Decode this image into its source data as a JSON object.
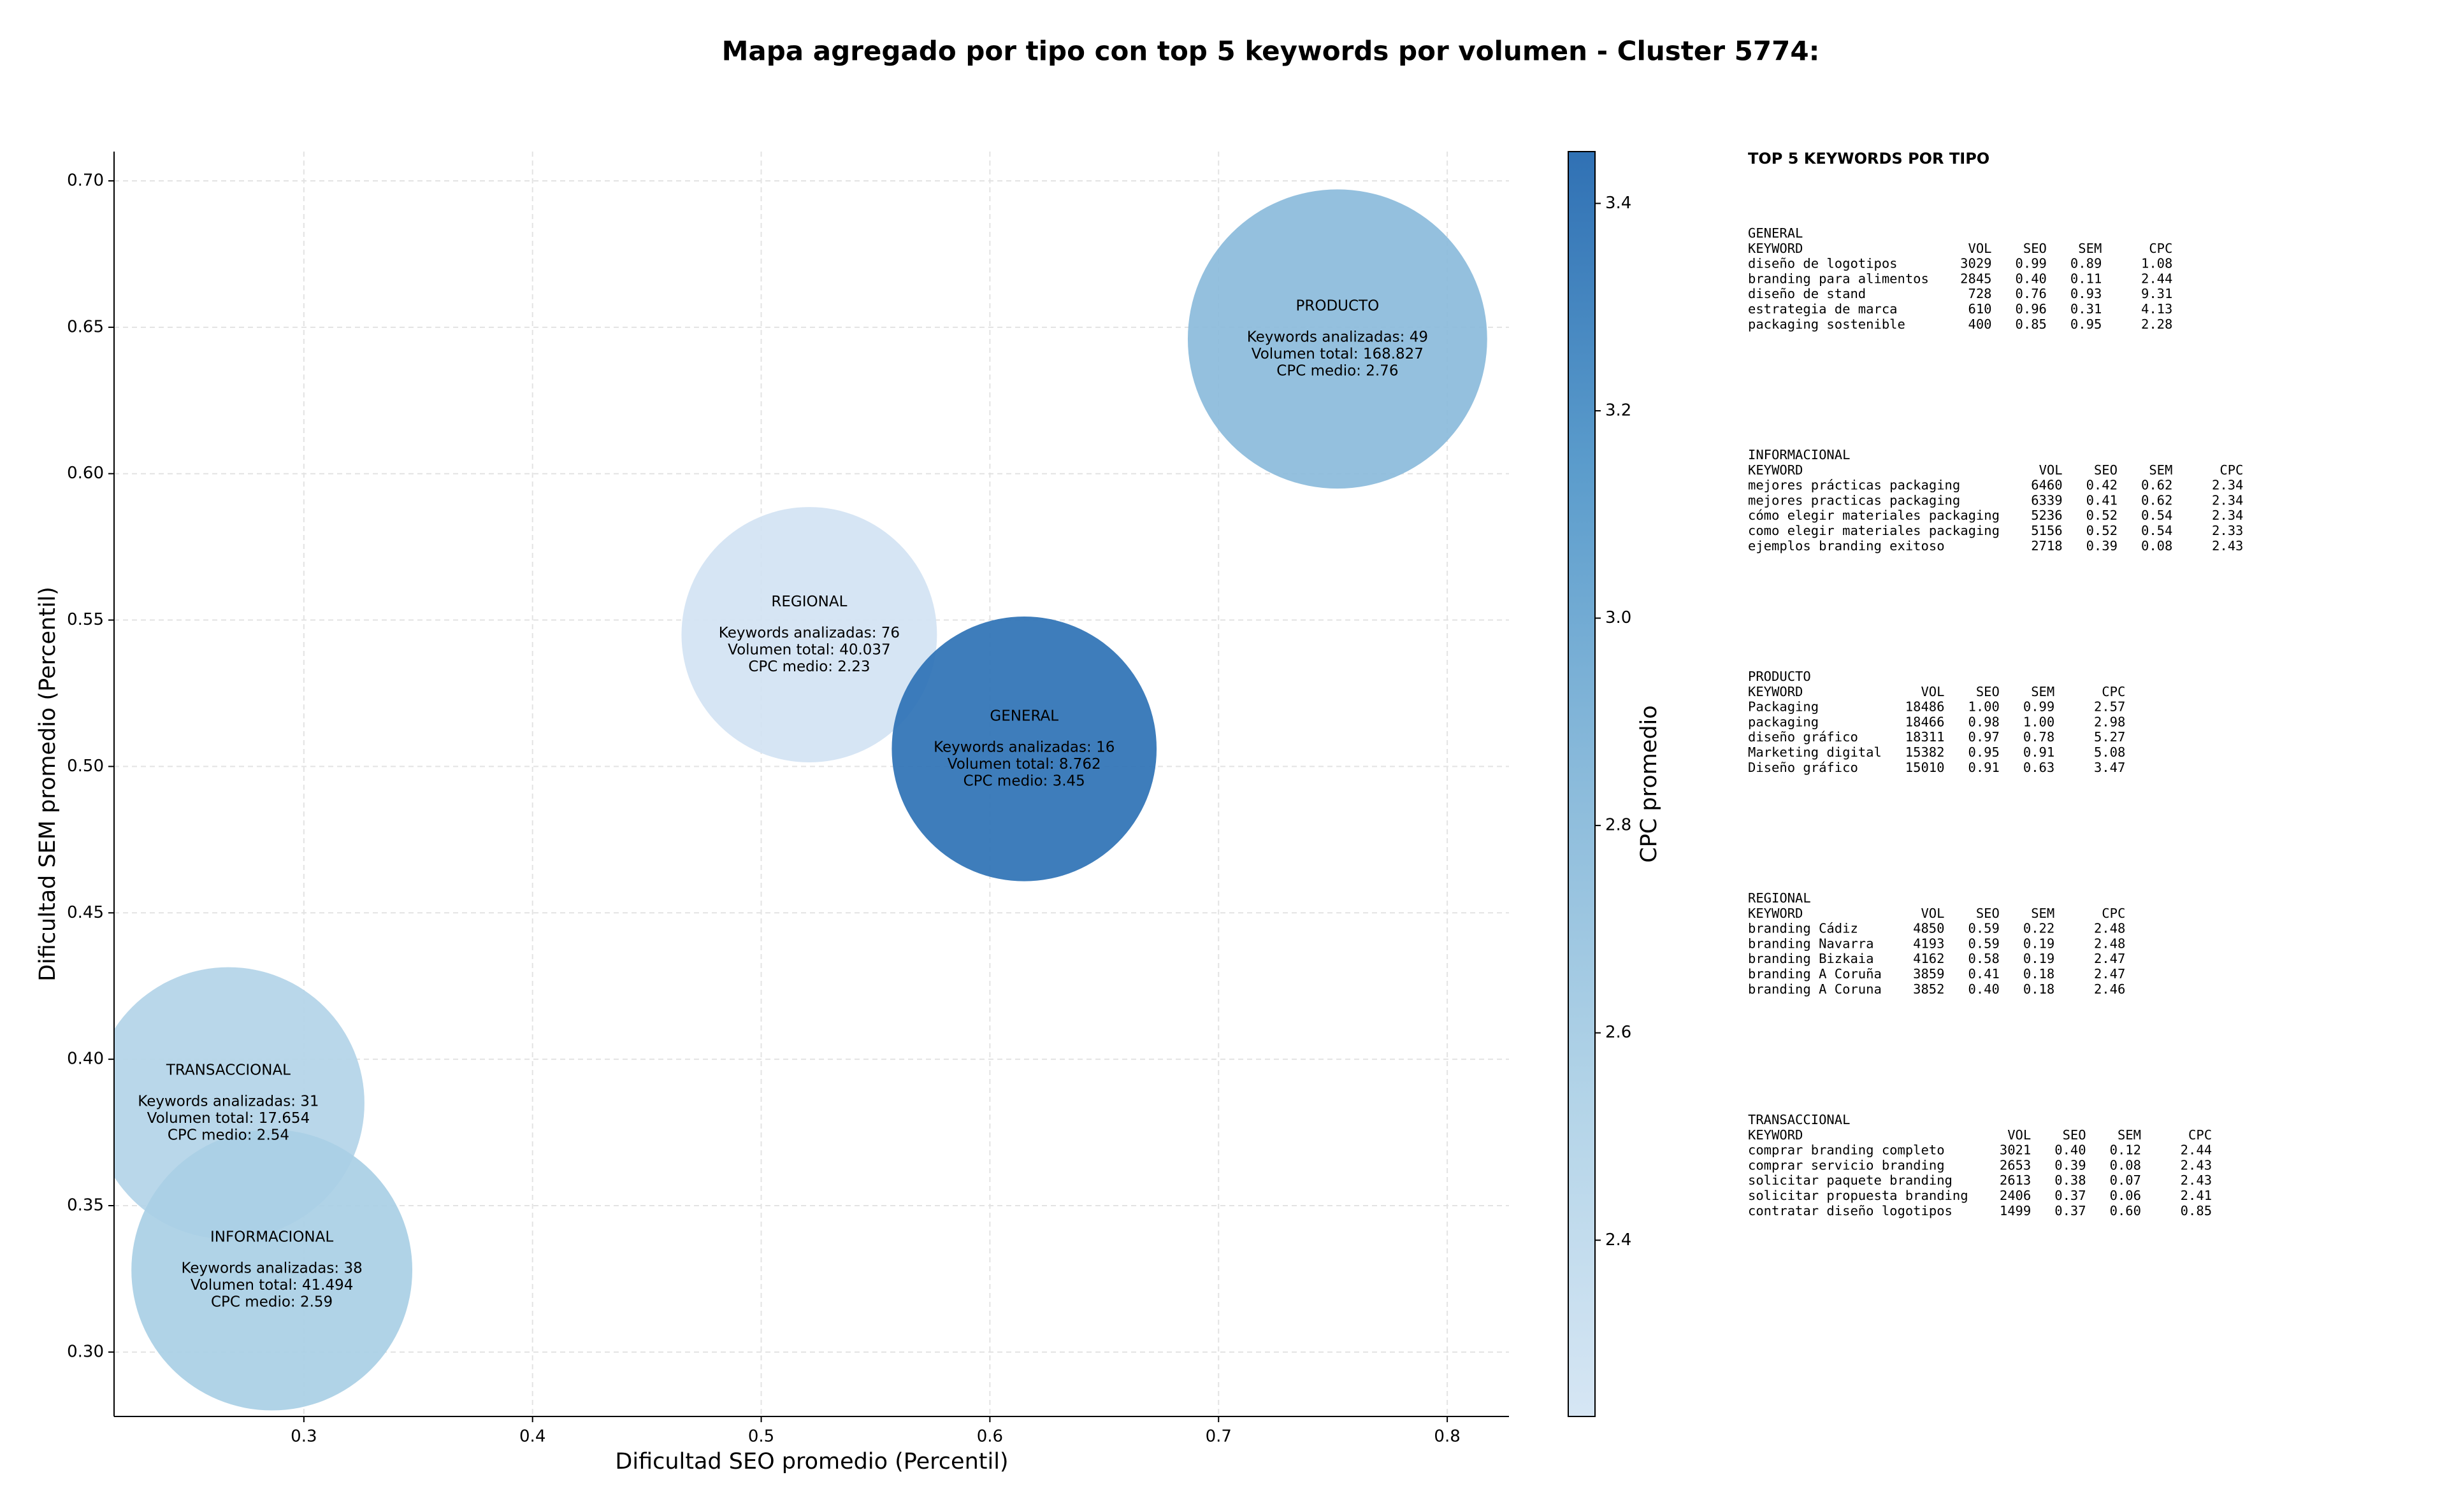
{
  "chart_data": {
    "type": "bubble",
    "title": "Mapa agregado por tipo con top 5 keywords por volumen - Cluster 5774:",
    "xlabel": "Dificultad SEO promedio (Percentil)",
    "ylabel": "Dificultad SEM promedio (Percentil)",
    "names": [
      "PRODUCTO",
      "REGIONAL",
      "GENERAL",
      "TRANSACCIONAL",
      "INFORMACIONAL"
    ],
    "x": [
      0.752,
      0.521,
      0.615,
      0.267,
      0.286
    ],
    "y": [
      0.646,
      0.545,
      0.506,
      0.385,
      0.328
    ],
    "sizes": [
      9200,
      6700,
      7200,
      7600,
      8100
    ],
    "cpc": [
      2.76,
      2.23,
      3.45,
      2.54,
      2.59
    ],
    "colors": [
      "#8bbbdb",
      "#d3e3f3",
      "#2e72b5",
      "#b3d4e8",
      "#a9cfe5"
    ],
    "labels": [
      [
        "Keywords analizadas: 49",
        "Volumen total: 168.827",
        "CPC medio: 2.76"
      ],
      [
        "Keywords analizadas: 76",
        "Volumen total: 40.037",
        "CPC medio: 2.23"
      ],
      [
        "Keywords analizadas: 16",
        "Volumen total: 8.762",
        "CPC medio: 3.45"
      ],
      [
        "Keywords analizadas: 31",
        "Volumen total: 17.654",
        "CPC medio: 2.54"
      ],
      [
        "Keywords analizadas: 38",
        "Volumen total: 41.494",
        "CPC medio: 2.59"
      ]
    ],
    "xlim": [
      0.217,
      0.827
    ],
    "ylim": [
      0.278,
      0.71
    ],
    "xticks": [
      0.3,
      0.4,
      0.5,
      0.6,
      0.7,
      0.8
    ],
    "yticks": [
      {
        "value": 0.3,
        "label": "0.30"
      },
      0.35,
      {
        "value": 0.4,
        "label": "0.40"
      },
      0.45,
      {
        "value": 0.5,
        "label": "0.50"
      },
      0.55,
      {
        "value": 0.6,
        "label": "0.60"
      },
      0.65,
      {
        "value": 0.7,
        "label": "0.70"
      }
    ],
    "grid": true,
    "colorbar": {
      "label": "CPC promedio",
      "lim": [
        2.23,
        3.45
      ],
      "ticks": [
        2.4,
        2.6,
        2.8,
        {
          "value": 3,
          "label": "3.0"
        },
        3.2,
        3.4
      ],
      "colors": [
        "#d6e6f4",
        "#b3d4e8",
        "#8bbbdb",
        "#5b9ccc",
        "#3071b4"
      ]
    }
  },
  "keyword_panel": {
    "title": "TOP 5 KEYWORDS POR TIPO",
    "columns": [
      "KEYWORD",
      "VOL",
      "SEO",
      "SEM",
      "CPC"
    ],
    "sections": [
      {
        "name": "GENERAL",
        "rows": [
          [
            "diseño de logotipos",
            "3029",
            "0.99",
            "0.89",
            "1.08"
          ],
          [
            "branding para alimentos",
            "2845",
            "0.40",
            "0.11",
            "2.44"
          ],
          [
            "diseño de stand",
            "728",
            "0.76",
            "0.93",
            "9.31"
          ],
          [
            "estrategia de marca",
            "610",
            "0.96",
            "0.31",
            "4.13"
          ],
          [
            "packaging sostenible",
            "400",
            "0.85",
            "0.95",
            "2.28"
          ]
        ]
      },
      {
        "name": "INFORMACIONAL",
        "rows": [
          [
            "mejores prácticas packaging",
            "6460",
            "0.42",
            "0.62",
            "2.34"
          ],
          [
            "mejores practicas packaging",
            "6339",
            "0.41",
            "0.62",
            "2.34"
          ],
          [
            "cómo elegir materiales packaging",
            "5236",
            "0.52",
            "0.54",
            "2.34"
          ],
          [
            "como elegir materiales packaging",
            "5156",
            "0.52",
            "0.54",
            "2.33"
          ],
          [
            "ejemplos branding exitoso",
            "2718",
            "0.39",
            "0.08",
            "2.43"
          ]
        ]
      },
      {
        "name": "PRODUCTO",
        "rows": [
          [
            "Packaging",
            "18486",
            "1.00",
            "0.99",
            "2.57"
          ],
          [
            "packaging",
            "18466",
            "0.98",
            "1.00",
            "2.98"
          ],
          [
            "diseño gráfico",
            "18311",
            "0.97",
            "0.78",
            "5.27"
          ],
          [
            "Marketing digital",
            "15382",
            "0.95",
            "0.91",
            "5.08"
          ],
          [
            "Diseño gráfico",
            "15010",
            "0.91",
            "0.63",
            "3.47"
          ]
        ]
      },
      {
        "name": "REGIONAL",
        "rows": [
          [
            "branding Cádiz",
            "4850",
            "0.59",
            "0.22",
            "2.48"
          ],
          [
            "branding Navarra",
            "4193",
            "0.59",
            "0.19",
            "2.48"
          ],
          [
            "branding Bizkaia",
            "4162",
            "0.58",
            "0.19",
            "2.47"
          ],
          [
            "branding A Coruña",
            "3859",
            "0.41",
            "0.18",
            "2.47"
          ],
          [
            "branding A Coruna",
            "3852",
            "0.40",
            "0.18",
            "2.46"
          ]
        ]
      },
      {
        "name": "TRANSACCIONAL",
        "rows": [
          [
            "comprar branding completo",
            "3021",
            "0.40",
            "0.12",
            "2.44"
          ],
          [
            "comprar servicio branding",
            "2653",
            "0.39",
            "0.08",
            "2.43"
          ],
          [
            "solicitar paquete branding",
            "2613",
            "0.38",
            "0.07",
            "2.43"
          ],
          [
            "solicitar propuesta branding",
            "2406",
            "0.37",
            "0.06",
            "2.41"
          ],
          [
            "contratar diseño logotipos",
            "1499",
            "0.37",
            "0.60",
            "0.85"
          ]
        ]
      }
    ]
  }
}
